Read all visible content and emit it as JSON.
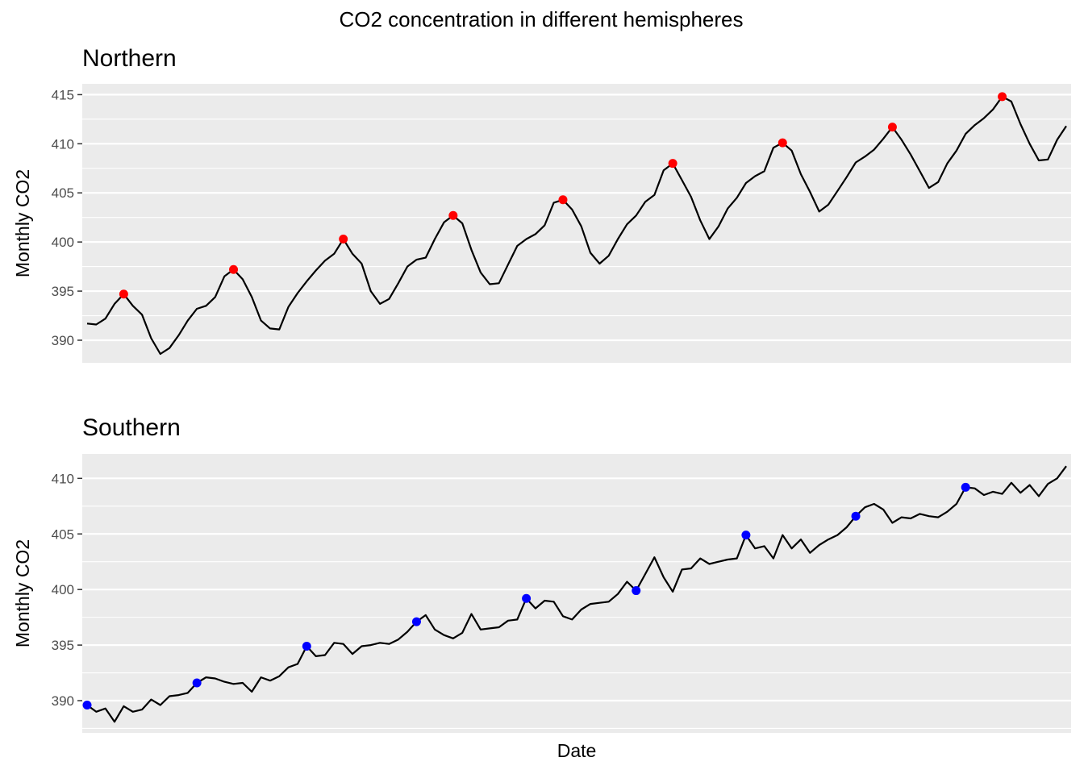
{
  "chart_data": {
    "type": "line",
    "title": "CO2 concentration in different hemispheres",
    "xlabel": "Date",
    "panels": [
      {
        "name": "Northern",
        "ylabel": "Monthly CO2",
        "ylim": [
          387.7,
          416.1
        ],
        "yticks": [
          390,
          395,
          400,
          405,
          410,
          415
        ],
        "highlight_color": "#ff0000",
        "line_color": "#000000",
        "values": [
          391.7,
          391.6,
          392.2,
          393.7,
          394.7,
          393.5,
          392.6,
          390.2,
          388.6,
          389.2,
          390.5,
          392.0,
          393.2,
          393.5,
          394.4,
          396.5,
          397.2,
          396.2,
          394.4,
          392.0,
          391.2,
          391.1,
          393.4,
          394.8,
          396.0,
          397.1,
          398.1,
          398.8,
          400.3,
          398.8,
          397.8,
          395.0,
          393.7,
          394.2,
          395.8,
          397.5,
          398.2,
          398.4,
          400.3,
          402.0,
          402.7,
          401.9,
          399.2,
          396.9,
          395.7,
          395.8,
          397.7,
          399.6,
          400.3,
          400.8,
          401.7,
          404.0,
          404.3,
          403.3,
          401.6,
          398.9,
          397.8,
          398.6,
          400.3,
          401.8,
          402.7,
          404.1,
          404.8,
          407.3,
          408.0,
          406.3,
          404.6,
          402.2,
          400.3,
          401.6,
          403.4,
          404.5,
          406.0,
          406.7,
          407.2,
          409.6,
          410.1,
          409.3,
          406.9,
          405.1,
          403.1,
          403.8,
          405.2,
          406.6,
          408.1,
          408.7,
          409.4,
          410.5,
          411.7,
          410.4,
          408.9,
          407.2,
          405.5,
          406.1,
          408.0,
          409.3,
          411.0,
          411.9,
          412.6,
          413.5,
          414.8,
          414.3,
          412.0,
          410.0,
          408.3,
          408.4,
          410.4,
          411.8
        ],
        "highlight_indices": [
          4,
          16,
          28,
          40,
          52,
          64,
          76,
          88,
          100
        ]
      },
      {
        "name": "Southern",
        "ylabel": "Monthly CO2",
        "ylim": [
          387.1,
          412.2
        ],
        "yticks": [
          390,
          395,
          400,
          405,
          410
        ],
        "highlight_color": "#0000ff",
        "line_color": "#000000",
        "values": [
          389.6,
          389.0,
          389.3,
          388.1,
          389.5,
          389.0,
          389.2,
          390.1,
          389.6,
          390.4,
          390.5,
          390.7,
          391.6,
          392.1,
          392.0,
          391.7,
          391.5,
          391.6,
          390.8,
          392.1,
          391.8,
          392.2,
          393.0,
          393.3,
          394.9,
          394.0,
          394.1,
          395.2,
          395.1,
          394.2,
          394.9,
          395.0,
          395.2,
          395.1,
          395.5,
          396.2,
          397.1,
          397.7,
          396.4,
          395.9,
          395.6,
          396.1,
          397.8,
          396.4,
          396.5,
          396.6,
          397.2,
          397.3,
          399.2,
          398.3,
          399.0,
          398.9,
          397.6,
          397.3,
          398.2,
          398.7,
          398.8,
          398.9,
          399.6,
          400.7,
          399.9,
          401.4,
          402.9,
          401.1,
          399.8,
          401.8,
          401.9,
          402.8,
          402.3,
          402.5,
          402.7,
          402.8,
          404.9,
          403.7,
          403.9,
          402.8,
          404.9,
          403.7,
          404.5,
          403.3,
          404.0,
          404.5,
          404.9,
          405.6,
          406.6,
          407.4,
          407.7,
          407.2,
          406.0,
          406.5,
          406.4,
          406.8,
          406.6,
          406.5,
          407.0,
          407.7,
          409.2,
          409.1,
          408.5,
          408.8,
          408.6,
          409.6,
          408.7,
          409.4,
          408.4,
          409.5,
          410.0,
          411.1
        ],
        "highlight_indices": [
          0,
          12,
          24,
          36,
          48,
          60,
          72,
          84,
          96
        ]
      }
    ]
  }
}
